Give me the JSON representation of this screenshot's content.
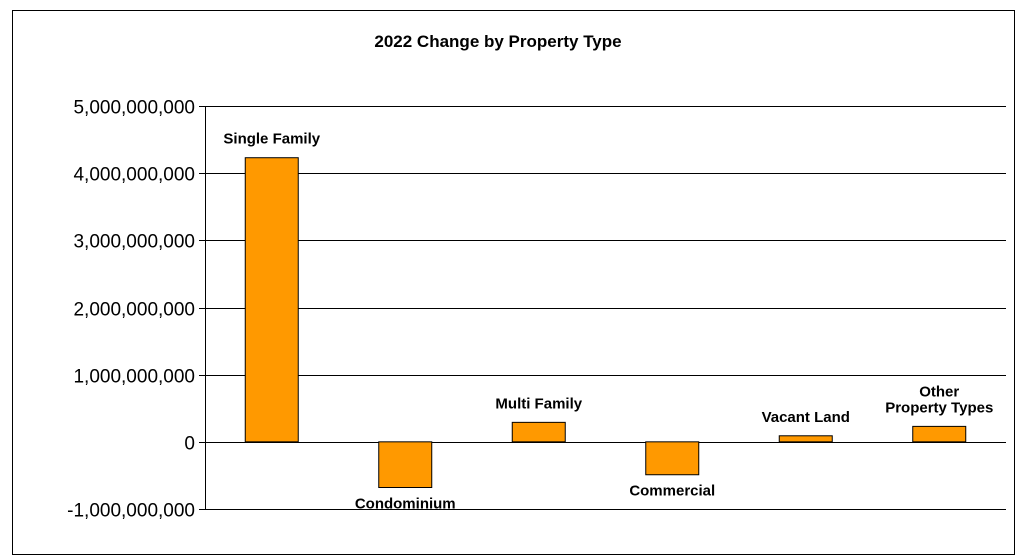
{
  "chart_data": {
    "type": "bar",
    "title": "2022 Change by Property Type",
    "xlabel": "",
    "ylabel": "",
    "categories": [
      "Single Family",
      "Condominium",
      "Multi Family",
      "Commercial",
      "Vacant Land",
      "Other Property Types"
    ],
    "category_label_lines": [
      [
        "Single Family"
      ],
      [
        "Condominium"
      ],
      [
        "Multi Family"
      ],
      [
        "Commercial"
      ],
      [
        "Vacant Land"
      ],
      [
        "Other",
        "Property Types"
      ]
    ],
    "values": [
      4230000000,
      -680000000,
      290000000,
      -490000000,
      90000000,
      230000000
    ],
    "ylim": [
      -1000000000,
      5000000000
    ],
    "yticks": [
      5000000000,
      4000000000,
      3000000000,
      2000000000,
      1000000000,
      0,
      -1000000000
    ],
    "ytick_labels": [
      "5,000,000,000",
      "4,000,000,000",
      "3,000,000,000",
      "2,000,000,000",
      "1,000,000,000",
      "0",
      "-1,000,000,000"
    ],
    "grid": true,
    "legend": "none",
    "bar_color": "#FF9900",
    "bar_edge_color": "#000000"
  }
}
